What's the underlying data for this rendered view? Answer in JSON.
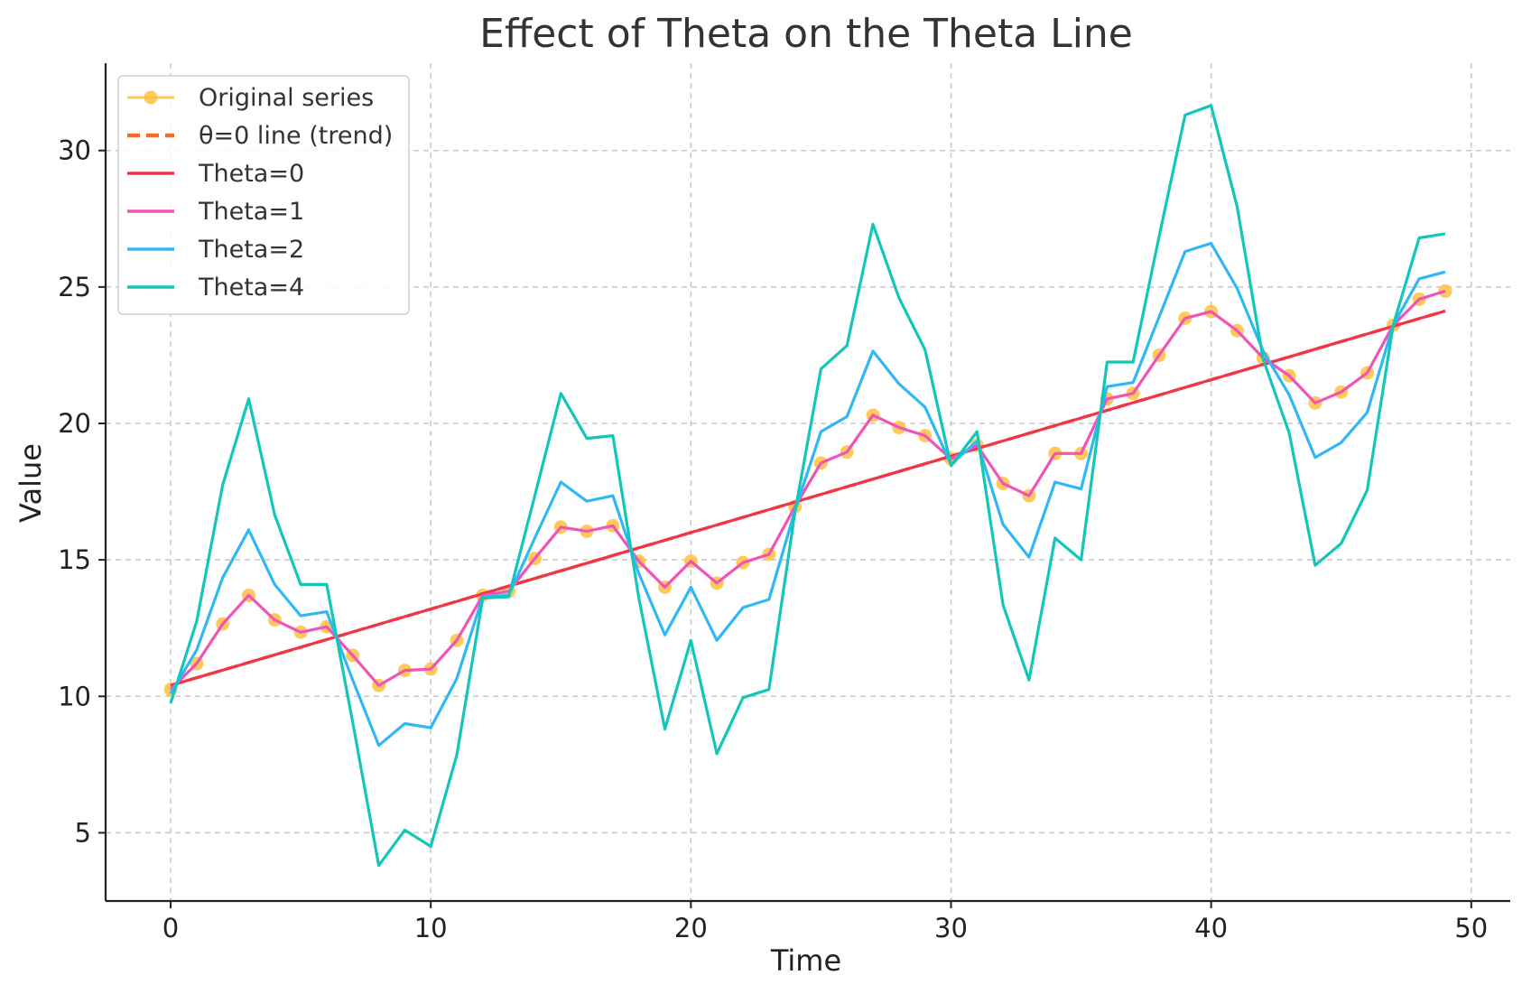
{
  "chart_data": {
    "type": "line",
    "title": "Effect of Theta on the Theta Line",
    "xlabel": "Time",
    "ylabel": "Value",
    "xlim": [
      -2.5,
      51.5
    ],
    "ylim": [
      2.5,
      33.2
    ],
    "xticks": [
      0,
      10,
      20,
      30,
      40,
      50
    ],
    "yticks": [
      5,
      10,
      15,
      20,
      25,
      30
    ],
    "grid": true,
    "legend_position": "upper-left",
    "x": [
      0,
      1,
      2,
      3,
      4,
      5,
      6,
      7,
      8,
      9,
      10,
      11,
      12,
      13,
      14,
      15,
      16,
      17,
      18,
      19,
      20,
      21,
      22,
      23,
      24,
      25,
      26,
      27,
      28,
      29,
      30,
      31,
      32,
      33,
      34,
      35,
      36,
      37,
      38,
      39,
      40,
      41,
      42,
      43,
      44,
      45,
      46,
      47,
      48,
      49
    ],
    "series": [
      {
        "name": "Original series",
        "color": "#ffbf40",
        "style": "line-with-markers",
        "values": [
          10.25,
          11.2,
          12.65,
          13.7,
          12.8,
          12.35,
          12.55,
          11.5,
          10.4,
          10.95,
          11.0,
          12.05,
          13.7,
          13.85,
          15.05,
          16.2,
          16.05,
          16.25,
          14.95,
          14.0,
          14.95,
          14.15,
          14.9,
          15.2,
          16.95,
          18.55,
          18.95,
          20.3,
          19.85,
          19.55,
          18.7,
          19.2,
          17.8,
          17.35,
          18.9,
          18.9,
          20.9,
          21.1,
          22.5,
          23.85,
          24.1,
          23.4,
          22.4,
          21.75,
          20.75,
          21.15,
          21.85,
          23.6,
          24.55,
          24.85
        ]
      },
      {
        "name": "θ=0 line (trend)",
        "color": "#f26c2a",
        "style": "dashed",
        "values": [
          10.4,
          10.68,
          10.96,
          11.24,
          11.52,
          11.8,
          12.08,
          12.36,
          12.64,
          12.92,
          13.2,
          13.48,
          13.76,
          14.04,
          14.32,
          14.6,
          14.88,
          15.16,
          15.44,
          15.72,
          16.0,
          16.28,
          16.56,
          16.84,
          17.12,
          17.4,
          17.68,
          17.96,
          18.24,
          18.52,
          18.8,
          19.08,
          19.36,
          19.64,
          19.92,
          20.2,
          20.48,
          20.76,
          21.04,
          21.32,
          21.6,
          21.88,
          22.16,
          22.44,
          22.72,
          23.0,
          23.28,
          23.56,
          23.84,
          24.12
        ]
      },
      {
        "name": "Theta=0",
        "color": "#f0354a",
        "style": "solid",
        "values": [
          10.4,
          10.68,
          10.96,
          11.24,
          11.52,
          11.8,
          12.08,
          12.36,
          12.64,
          12.92,
          13.2,
          13.48,
          13.76,
          14.04,
          14.32,
          14.6,
          14.88,
          15.16,
          15.44,
          15.72,
          16.0,
          16.28,
          16.56,
          16.84,
          17.12,
          17.4,
          17.68,
          17.96,
          18.24,
          18.52,
          18.8,
          19.08,
          19.36,
          19.64,
          19.92,
          20.2,
          20.48,
          20.76,
          21.04,
          21.32,
          21.6,
          21.88,
          22.16,
          22.44,
          22.72,
          23.0,
          23.28,
          23.56,
          23.84,
          24.12
        ]
      },
      {
        "name": "Theta=1",
        "color": "#f054b8",
        "style": "solid",
        "values": [
          10.25,
          11.2,
          12.65,
          13.7,
          12.8,
          12.35,
          12.55,
          11.5,
          10.4,
          10.95,
          11.0,
          12.05,
          13.7,
          13.85,
          15.05,
          16.2,
          16.05,
          16.25,
          14.95,
          14.0,
          14.95,
          14.15,
          14.9,
          15.2,
          16.95,
          18.55,
          18.95,
          20.3,
          19.85,
          19.55,
          18.7,
          19.2,
          17.8,
          17.35,
          18.9,
          18.9,
          20.9,
          21.1,
          22.5,
          23.85,
          24.1,
          23.4,
          22.4,
          21.75,
          20.75,
          21.15,
          21.85,
          23.6,
          24.55,
          24.85
        ]
      },
      {
        "name": "Theta=2",
        "color": "#30b8f5",
        "style": "solid",
        "values": [
          10.1,
          11.7,
          14.35,
          16.1,
          14.1,
          12.95,
          13.1,
          10.6,
          8.2,
          9.0,
          8.85,
          10.65,
          13.65,
          13.7,
          15.8,
          17.85,
          17.15,
          17.35,
          14.5,
          12.25,
          14.0,
          12.05,
          13.25,
          13.55,
          16.8,
          19.7,
          20.25,
          22.65,
          21.45,
          20.6,
          18.5,
          19.35,
          16.3,
          15.1,
          17.85,
          17.6,
          21.35,
          21.5,
          23.9,
          26.3,
          26.6,
          24.95,
          22.65,
          21.05,
          18.75,
          19.3,
          20.4,
          23.6,
          25.3,
          25.55
        ]
      },
      {
        "name": "Theta=4",
        "color": "#13c7b8",
        "style": "solid",
        "values": [
          9.75,
          12.75,
          17.75,
          20.9,
          16.65,
          14.1,
          14.1,
          9.05,
          3.8,
          5.1,
          4.5,
          7.85,
          13.6,
          13.65,
          17.35,
          21.1,
          19.45,
          19.55,
          13.6,
          8.8,
          12.05,
          7.9,
          9.95,
          10.25,
          16.75,
          22.0,
          22.85,
          27.3,
          24.6,
          22.7,
          18.45,
          19.7,
          13.35,
          10.6,
          15.8,
          15.0,
          22.25,
          22.25,
          26.85,
          31.3,
          31.65,
          27.95,
          22.35,
          19.65,
          14.8,
          15.6,
          17.55,
          23.6,
          26.8,
          26.95
        ]
      }
    ]
  }
}
